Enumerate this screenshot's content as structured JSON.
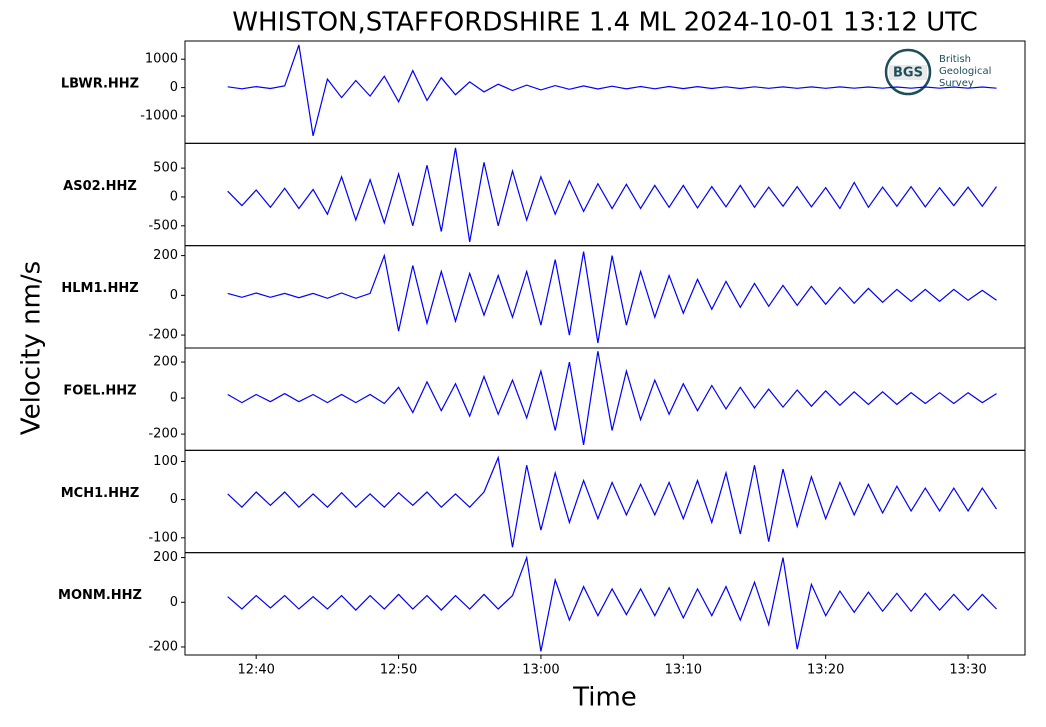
{
  "chart_data": {
    "type": "line",
    "title": "WHISTON,STAFFORDSHIRE 1.4 ML   2024-10-01 13:12 UTC",
    "xlabel": "Time",
    "ylabel": "Velocity nm/s",
    "color": "#0000ff",
    "x": [
      "12:38",
      "12:39",
      "12:40",
      "12:41",
      "12:42",
      "12:43",
      "12:44",
      "12:45",
      "12:46",
      "12:47",
      "12:48",
      "12:49",
      "12:50",
      "12:51",
      "12:52",
      "12:53",
      "12:54",
      "12:55",
      "12:56",
      "12:57",
      "12:58",
      "12:59",
      "13:00",
      "13:01",
      "13:02",
      "13:03",
      "13:04",
      "13:05",
      "13:06",
      "13:07",
      "13:08",
      "13:09",
      "13:10",
      "13:11",
      "13:12",
      "13:13",
      "13:14",
      "13:15",
      "13:16",
      "13:17",
      "13:18",
      "13:19",
      "13:20",
      "13:21",
      "13:22",
      "13:23",
      "13:24",
      "13:25",
      "13:26",
      "13:27",
      "13:28",
      "13:29",
      "13:30",
      "13:31",
      "13:32"
    ],
    "xlim": [
      "12:35",
      "13:34"
    ],
    "xticks": [
      "12:40",
      "12:50",
      "13:00",
      "13:10",
      "13:20",
      "13:30"
    ],
    "series": [
      {
        "name": "LBWR.HHZ",
        "ylim": [
          -1960,
          1640
        ],
        "yticks": [
          -1000,
          0,
          1000
        ],
        "values": [
          30,
          -40,
          35,
          -30,
          60,
          1500,
          -1700,
          300,
          -350,
          250,
          -300,
          400,
          -500,
          600,
          -450,
          350,
          -250,
          200,
          -150,
          120,
          -100,
          90,
          -80,
          70,
          -60,
          60,
          -50,
          50,
          -45,
          40,
          -40,
          40,
          -35,
          35,
          -30,
          30,
          -30,
          30,
          -25,
          25,
          -25,
          25,
          -25,
          25,
          -20,
          20,
          -20,
          20,
          -20,
          20,
          -20,
          20,
          -20,
          20,
          -20
        ]
      },
      {
        "name": "AS02.HHZ",
        "ylim": [
          -845,
          930
        ],
        "yticks": [
          -500,
          0,
          500
        ],
        "values": [
          100,
          -150,
          120,
          -180,
          150,
          -200,
          130,
          -300,
          350,
          -400,
          300,
          -450,
          400,
          -500,
          550,
          -600,
          850,
          -780,
          600,
          -500,
          450,
          -400,
          350,
          -300,
          280,
          -250,
          230,
          -200,
          220,
          -200,
          200,
          -180,
          200,
          -190,
          180,
          -170,
          200,
          -180,
          170,
          -160,
          180,
          -170,
          160,
          -200,
          250,
          -180,
          170,
          -160,
          180,
          -170,
          160,
          -150,
          170,
          -160,
          180
        ]
      },
      {
        "name": "HLM1.HHZ",
        "ylim": [
          -265,
          250
        ],
        "yticks": [
          -200,
          0,
          200
        ],
        "values": [
          10,
          -10,
          12,
          -10,
          10,
          -12,
          10,
          -15,
          12,
          -15,
          10,
          200,
          -180,
          150,
          -140,
          120,
          -130,
          110,
          -100,
          100,
          -110,
          120,
          -150,
          180,
          -200,
          220,
          -240,
          200,
          -150,
          120,
          -110,
          100,
          -90,
          80,
          -70,
          70,
          -60,
          60,
          -55,
          50,
          -50,
          45,
          -45,
          40,
          -40,
          35,
          -35,
          30,
          -30,
          30,
          -30,
          30,
          -25,
          25,
          -25
        ]
      },
      {
        "name": "FOEL.HHZ",
        "ylim": [
          -290,
          278
        ],
        "yticks": [
          -200,
          0,
          200
        ],
        "values": [
          20,
          -25,
          20,
          -20,
          25,
          -20,
          20,
          -25,
          20,
          -25,
          20,
          -30,
          60,
          -80,
          90,
          -70,
          80,
          -100,
          120,
          -90,
          100,
          -110,
          150,
          -180,
          200,
          -260,
          260,
          -180,
          150,
          -120,
          100,
          -90,
          80,
          -70,
          70,
          -60,
          60,
          -55,
          50,
          -50,
          45,
          -45,
          40,
          -40,
          35,
          -35,
          35,
          -35,
          30,
          -30,
          30,
          -30,
          30,
          -25,
          25
        ]
      },
      {
        "name": "MCH1.HHZ",
        "ylim": [
          -139,
          129
        ],
        "yticks": [
          -100,
          0,
          100
        ],
        "values": [
          15,
          -20,
          20,
          -15,
          20,
          -20,
          15,
          -20,
          18,
          -20,
          15,
          -20,
          18,
          -15,
          20,
          -20,
          15,
          -20,
          20,
          110,
          -125,
          90,
          -80,
          70,
          -60,
          50,
          -50,
          45,
          -40,
          40,
          -40,
          45,
          -50,
          50,
          -60,
          70,
          -90,
          90,
          -110,
          80,
          -70,
          60,
          -50,
          45,
          -40,
          40,
          -35,
          35,
          -30,
          30,
          -30,
          30,
          -30,
          30,
          -25
        ]
      },
      {
        "name": "MONM.HHZ",
        "ylim": [
          -236,
          222
        ],
        "yticks": [
          -200,
          0,
          200
        ],
        "values": [
          25,
          -30,
          30,
          -25,
          30,
          -30,
          25,
          -30,
          30,
          -35,
          30,
          -30,
          35,
          -30,
          30,
          -35,
          30,
          -30,
          35,
          -30,
          30,
          200,
          -220,
          100,
          -80,
          70,
          -60,
          60,
          -55,
          60,
          -60,
          65,
          -70,
          60,
          -60,
          70,
          -80,
          90,
          -100,
          200,
          -210,
          80,
          -60,
          50,
          -45,
          45,
          -40,
          40,
          -40,
          40,
          -35,
          35,
          -35,
          35,
          -30
        ]
      }
    ]
  },
  "logo": {
    "abbr": "BGS",
    "lines": [
      "British",
      "Geological",
      "Survey"
    ]
  }
}
